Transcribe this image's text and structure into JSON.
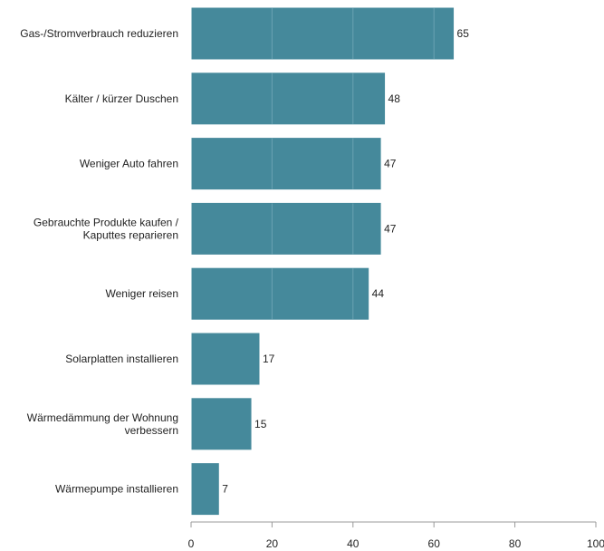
{
  "chart_data": {
    "type": "bar",
    "orientation": "horizontal",
    "categories": [
      [
        "Gas-/Stromverbrauch reduzieren"
      ],
      [
        "Kälter / kürzer Duschen"
      ],
      [
        "Weniger Auto fahren"
      ],
      [
        "Gebrauchte Produkte kaufen /",
        "Kaputtes reparieren"
      ],
      [
        "Weniger reisen"
      ],
      [
        "Solarplatten installieren"
      ],
      [
        "Wärmedämmung der Wohnung",
        "verbessern"
      ],
      [
        "Wärmepumpe installieren"
      ]
    ],
    "values": [
      65,
      48,
      47,
      47,
      44,
      17,
      15,
      7
    ],
    "value_labels": [
      "65",
      "48",
      "47",
      "47",
      "44",
      "17",
      "15",
      "7"
    ],
    "xlim": [
      0,
      100
    ],
    "xticks": [
      0,
      20,
      40,
      60,
      80,
      100
    ],
    "xtick_labels": [
      "0",
      "20",
      "40",
      "60",
      "80",
      "100"
    ],
    "grid": true,
    "legend": "none",
    "colors": {
      "bar": "#45899b",
      "bar_edge": "#ffffff",
      "grid_on_bar": "#6aa3b2",
      "text": "#222222",
      "axis": "#999999"
    }
  }
}
